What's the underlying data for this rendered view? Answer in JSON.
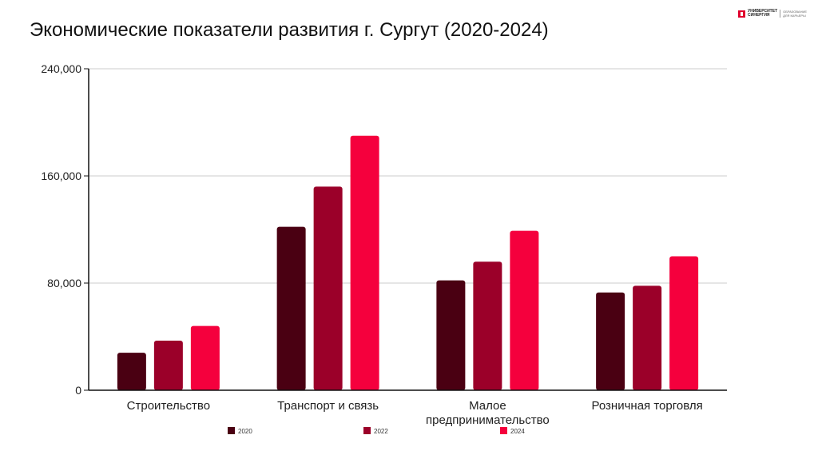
{
  "title": "Экономические показатели развития г. Сургут (2020-2024)",
  "logo": {
    "text_line1": "УНИВЕРСИТЕТ",
    "text_line2": "СИНЕРГИЯ",
    "sub_line1": "ОБРАЗОВАНИЕ",
    "sub_line2": "ДЛЯ КАРЬЕРЫ"
  },
  "colors": {
    "2020": "#4a0012",
    "2022": "#9b0029",
    "2024": "#f5003d",
    "grid": "#cccccc",
    "axis": "#111111"
  },
  "chart_data": {
    "type": "bar",
    "title": "Экономические показатели развития г. Сургут (2020-2024)",
    "categories": [
      "Строительство",
      "Транспорт и связь",
      "Малое предпринимательство",
      "Розничная торговля"
    ],
    "category_lines": [
      [
        "Строительство"
      ],
      [
        "Транспорт и связь"
      ],
      [
        "Малое",
        "предпринимательство"
      ],
      [
        "Розничная торговля"
      ]
    ],
    "series": [
      {
        "name": "2020",
        "values": [
          28000,
          122000,
          82000,
          73000
        ]
      },
      {
        "name": "2022",
        "values": [
          37000,
          152000,
          96000,
          78000
        ]
      },
      {
        "name": "2024",
        "values": [
          48000,
          190000,
          119000,
          100000
        ]
      }
    ],
    "ylim": [
      0,
      240000
    ],
    "yticks": [
      0,
      80000,
      160000,
      240000
    ],
    "ytick_labels": [
      "0",
      "80,000",
      "160,000",
      "240,000"
    ],
    "grid": true,
    "legend_position": "bottom",
    "xlabel": "",
    "ylabel": ""
  }
}
